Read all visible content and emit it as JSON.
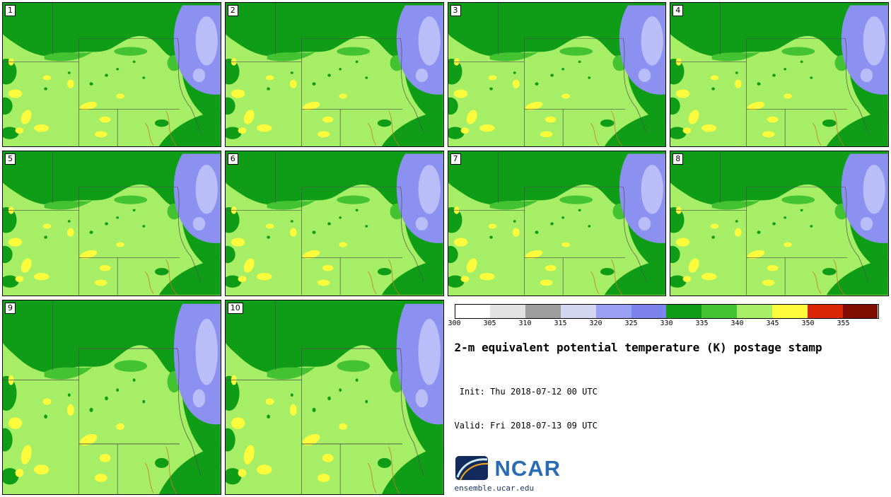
{
  "page": {
    "title": "2-m equivalent potential temperature (K) postage stamp",
    "init_line": " Init: Thu 2018-07-12 00 UTC",
    "valid_line": "Valid: Fri 2018-07-13 09 UTC"
  },
  "panels": [
    {
      "label": "1"
    },
    {
      "label": "2"
    },
    {
      "label": "3"
    },
    {
      "label": "4"
    },
    {
      "label": "5"
    },
    {
      "label": "6"
    },
    {
      "label": "7"
    },
    {
      "label": "8"
    },
    {
      "label": "9"
    },
    {
      "label": "10"
    }
  ],
  "colorbar": {
    "ticks": [
      "300",
      "305",
      "310",
      "315",
      "320",
      "325",
      "330",
      "335",
      "340",
      "345",
      "350",
      "355"
    ],
    "segment_colors": [
      "#ffffff",
      "#e2e2e2",
      "#9d9d9d",
      "#d3d5ef",
      "#9aa0f3",
      "#7c83ec",
      "#0f9d17",
      "#43c331",
      "#a6ee65",
      "#fcfc3d",
      "#d92605",
      "#7e0d00"
    ]
  },
  "map_palette": {
    "light_green": "#a6ee65",
    "dark_green": "#0f9d17",
    "mid_green": "#43c331",
    "blue": "#8b90f1",
    "light_blue": "#babef8",
    "yellow": "#fcfc3d"
  },
  "branding": {
    "logo_text": "NCAR",
    "site": "ensemble.ucar.edu"
  }
}
